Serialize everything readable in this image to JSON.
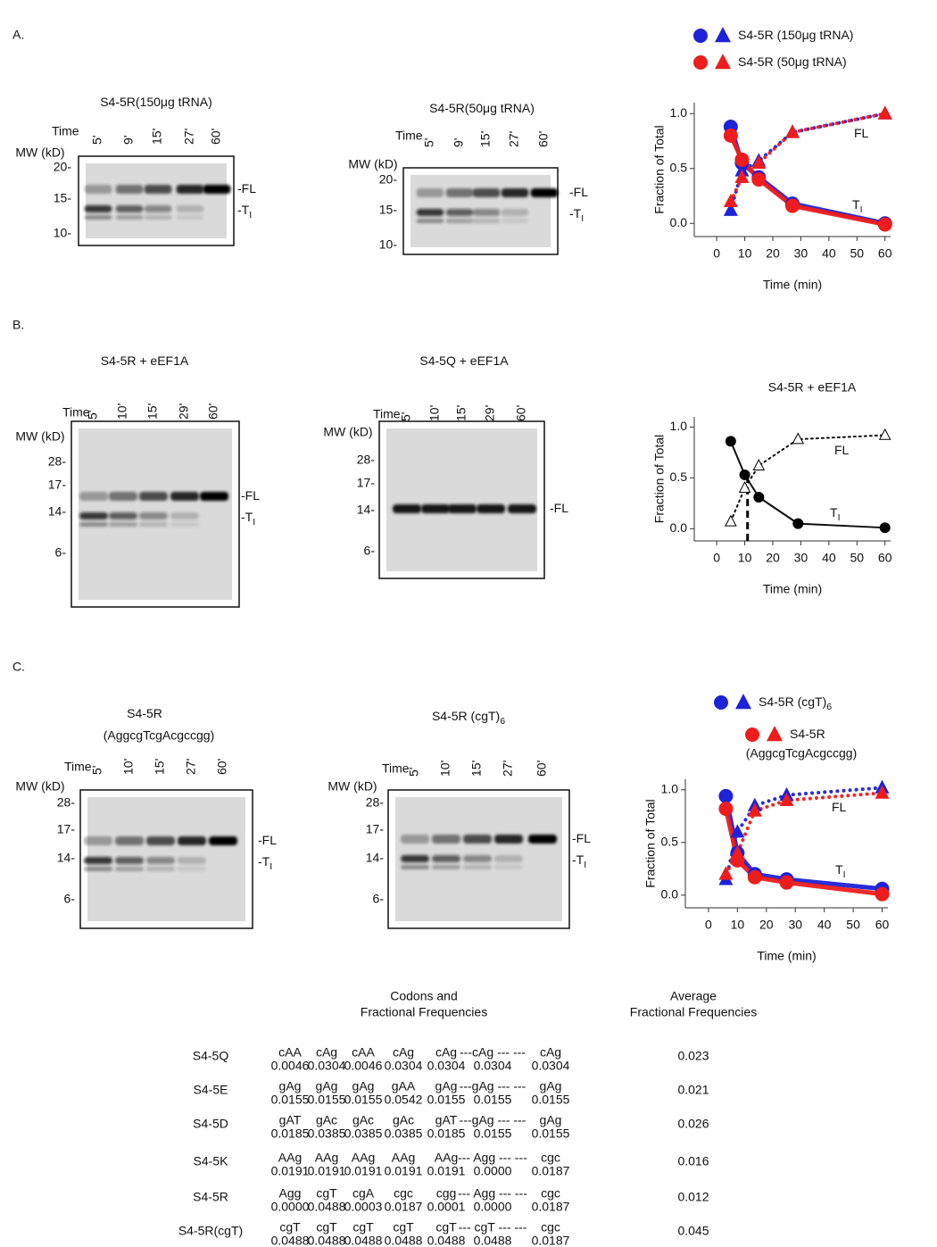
{
  "panels": [
    {
      "label": "A.",
      "gels": [
        {
          "title": "S4-5R(150μg tRNA)",
          "time_label": "Time",
          "times": [
            "5'",
            "9'",
            "15'",
            "27'",
            "60'"
          ],
          "mw_label": "MW (kD)",
          "mw_ticks": [
            "20-",
            "15-",
            "10-"
          ],
          "band_labels": [
            {
              "text": "-FL"
            },
            {
              "text": "-T",
              "sub": "I"
            }
          ]
        },
        {
          "title": "S4-5R(50μg tRNA)",
          "time_label": "Time",
          "times": [
            "5'",
            "9'",
            "15'",
            "27'",
            "60'"
          ],
          "mw_label": "MW (kD)",
          "mw_ticks": [
            "20-",
            "15-",
            "10-"
          ],
          "band_labels": [
            {
              "text": "-FL"
            },
            {
              "text": "-T",
              "sub": "I"
            }
          ]
        }
      ],
      "chart": {
        "type": "line",
        "xlabel": "Time (min)",
        "ylabel": "Fraction of Total",
        "legend": [
          {
            "label": "S4-5R (150μg tRNA)",
            "color": "#1e22d8"
          },
          {
            "label": "S4-5R (50μg tRNA)",
            "color": "#ee1c1c"
          }
        ],
        "xlim": [
          -8,
          62
        ],
        "xticks": [
          0,
          10,
          20,
          30,
          40,
          50,
          60
        ],
        "ylim": [
          -0.12,
          1.1
        ],
        "yticks": [
          {
            "value": 0,
            "label": "0.0"
          },
          {
            "value": 0.5,
            "label": "0.5"
          },
          {
            "value": 1,
            "label": "1.0"
          }
        ],
        "series": [
          {
            "color": "#1e22d8",
            "marker": "circle",
            "line": "solid",
            "x": [
              5,
              9,
              15,
              27,
              60
            ],
            "values": [
              0.88,
              0.55,
              0.42,
              0.18,
              0.0
            ]
          },
          {
            "color": "#1e22d8",
            "marker": "triangle",
            "line": "dotted",
            "x": [
              5,
              9,
              15,
              27,
              60
            ],
            "values": [
              0.12,
              0.48,
              0.57,
              0.83,
              1.0
            ]
          },
          {
            "color": "#ee1c1c",
            "marker": "circle",
            "line": "solid",
            "x": [
              5,
              9,
              15,
              27,
              60
            ],
            "values": [
              0.8,
              0.58,
              0.4,
              0.16,
              -0.01
            ]
          },
          {
            "color": "#ee1c1c",
            "marker": "triangle",
            "line": "dotted",
            "x": [
              5,
              9,
              15,
              27,
              60
            ],
            "values": [
              0.2,
              0.42,
              0.55,
              0.83,
              1.0
            ]
          }
        ],
        "annotations": [
          {
            "text": "FL"
          },
          {
            "text": "T",
            "sub": "I"
          }
        ]
      }
    },
    {
      "label": "B.",
      "gels": [
        {
          "title": "S4-5R + eEF1A",
          "time_label": "Time",
          "times": [
            "5'",
            "10'",
            "15'",
            "29'",
            "60'"
          ],
          "mw_label": "MW (kD)",
          "mw_ticks": [
            "28-",
            "17-",
            "14-",
            "6-"
          ],
          "band_labels": [
            {
              "text": "-FL"
            },
            {
              "text": "-T",
              "sub": "I"
            }
          ]
        },
        {
          "title": "S4-5Q + eEF1A",
          "time_label": "Time",
          "times": [
            "5'",
            "10'",
            "15'",
            "29'",
            "60'"
          ],
          "mw_label": "MW (kD)",
          "mw_ticks": [
            "28-",
            "17-",
            "14-",
            "6-"
          ],
          "band_labels": [
            {
              "text": "-FL"
            }
          ]
        }
      ],
      "chart": {
        "type": "line",
        "title": "S4-5R + eEF1A",
        "xlabel": "Time (min)",
        "ylabel": "Fraction of Total",
        "xlim": [
          -8,
          62
        ],
        "xticks": [
          0,
          10,
          20,
          30,
          40,
          50,
          60
        ],
        "ylim": [
          -0.12,
          1.1
        ],
        "yticks": [
          {
            "value": 0,
            "label": "0.0"
          },
          {
            "value": 0.5,
            "label": "0.5"
          },
          {
            "value": 1,
            "label": "1.0"
          }
        ],
        "half_time_x": 11,
        "series": [
          {
            "color": "#000000",
            "marker": "circle",
            "line": "solid",
            "x": [
              5,
              10,
              15,
              29,
              60
            ],
            "values": [
              0.86,
              0.53,
              0.31,
              0.05,
              0.01
            ]
          },
          {
            "color": "#000000",
            "marker": "triangle-open",
            "line": "dotted",
            "x": [
              5,
              10,
              15,
              29,
              60
            ],
            "values": [
              0.07,
              0.4,
              0.62,
              0.88,
              0.92
            ]
          }
        ],
        "annotations": [
          {
            "text": "FL"
          },
          {
            "text": "T",
            "sub": "I"
          }
        ]
      }
    },
    {
      "label": "C.",
      "gels": [
        {
          "title": "S4-5R",
          "title2": "(AggcgTcgAcgccgg)",
          "time_label": "Time",
          "times": [
            "5'",
            "10'",
            "15'",
            "27'",
            "60'"
          ],
          "mw_label": "MW (kD)",
          "mw_ticks": [
            "28-",
            "17-",
            "14-",
            "6-"
          ],
          "band_labels": [
            {
              "text": "-FL"
            },
            {
              "text": "-T",
              "sub": "I"
            }
          ]
        },
        {
          "title": "S4-5R (cgT)",
          "title_sub": "6",
          "time_label": "Time",
          "times": [
            "5'",
            "10'",
            "15'",
            "27'",
            "60'"
          ],
          "mw_label": "MW (kD)",
          "mw_ticks": [
            "28-",
            "17-",
            "14-",
            "6-"
          ],
          "band_labels": [
            {
              "text": "-FL"
            },
            {
              "text": "-T",
              "sub": "I"
            }
          ]
        }
      ],
      "chart": {
        "type": "line",
        "xlabel": "Time (min)",
        "ylabel": "Fraction of Total",
        "legend": [
          {
            "label": "S4-5R (cgT)",
            "sub": "6",
            "color": "#1e22d8"
          },
          {
            "label": "S4-5R",
            "label2": "(AggcgTcgAcgccgg)",
            "color": "#ee1c1c"
          }
        ],
        "xlim": [
          -8,
          62
        ],
        "xticks": [
          0,
          10,
          20,
          30,
          40,
          50,
          60
        ],
        "ylim": [
          -0.12,
          1.1
        ],
        "yticks": [
          {
            "value": 0,
            "label": "0.0"
          },
          {
            "value": 0.5,
            "label": "0.5"
          },
          {
            "value": 1,
            "label": "1.0"
          }
        ],
        "series": [
          {
            "color": "#1e22d8",
            "marker": "circle",
            "line": "solid",
            "x": [
              6,
              10,
              16,
              27,
              60
            ],
            "values": [
              0.94,
              0.4,
              0.2,
              0.15,
              0.06
            ]
          },
          {
            "color": "#1e22d8",
            "marker": "triangle",
            "line": "dotted",
            "x": [
              6,
              10,
              16,
              27,
              60
            ],
            "values": [
              0.15,
              0.6,
              0.85,
              0.95,
              1.02
            ]
          },
          {
            "color": "#ee1c1c",
            "marker": "circle",
            "line": "solid",
            "x": [
              6,
              10,
              16,
              27,
              60
            ],
            "values": [
              0.82,
              0.33,
              0.17,
              0.12,
              0.01
            ]
          },
          {
            "color": "#ee1c1c",
            "marker": "triangle",
            "line": "dotted",
            "x": [
              6,
              10,
              16,
              27,
              60
            ],
            "values": [
              0.2,
              0.4,
              0.8,
              0.9,
              0.97
            ]
          }
        ],
        "annotations": [
          {
            "text": "FL"
          },
          {
            "text": "T",
            "sub": "I"
          }
        ]
      }
    }
  ],
  "table": {
    "headers": [
      [
        "Codons and",
        "Fractional Frequencies"
      ],
      [
        "Average",
        "Fractional Frequencies"
      ]
    ],
    "rows": [
      {
        "name": "S4-5Q",
        "codons": [
          "cAA",
          "cAg",
          "cAA",
          "cAg",
          "cAg",
          "---cAg --- ---",
          "cAg"
        ],
        "freqs": [
          "0.0046",
          "0.0304",
          "0.0046",
          "0.0304",
          "0.0304",
          "0.0304",
          "0.0304"
        ],
        "average": "0.023"
      },
      {
        "name": "S4-5E",
        "codons": [
          "gAg",
          "gAg",
          "gAg",
          "gAA",
          "gAg",
          "---gAg --- ---",
          "gAg"
        ],
        "freqs": [
          "0.0155",
          "0.0155",
          "0.0155",
          "0.0542",
          "0.0155",
          "0.0155",
          "0.0155"
        ],
        "average": "0.021"
      },
      {
        "name": "S4-5D",
        "codons": [
          "gAT",
          "gAc",
          "gAc",
          "gAc",
          "gAT",
          "---gAg --- ---",
          "gAg"
        ],
        "freqs": [
          "0.0185",
          "0.0385",
          "0.0385",
          "0.0385",
          "0.0185",
          "0.0155",
          "0.0155"
        ],
        "average": "0.026"
      },
      {
        "name": "S4-5K",
        "codons": [
          "AAg",
          "AAg",
          "AAg",
          "AAg",
          "AAg",
          "--- Agg --- ---",
          "cgc"
        ],
        "freqs": [
          "0.0191",
          "0.0191",
          "0.0191",
          "0.0191",
          "0.0191",
          "0.0000",
          "0.0187"
        ],
        "average": "0.016"
      },
      {
        "name": "S4-5R",
        "codons": [
          "Agg",
          "cgT",
          "cgA",
          "cgc",
          "cgg",
          "--- Agg --- ---",
          "cgc"
        ],
        "freqs": [
          "0.0000",
          "0.0488",
          "0.0003",
          "0.0187",
          "0.0001",
          "0.0000",
          "0.0187"
        ],
        "average": "0.012"
      },
      {
        "name": "S4-5R(cgT)",
        "codons": [
          "cgT",
          "cgT",
          "cgT",
          "cgT",
          "cgT",
          "--- cgT --- ---",
          "cgc"
        ],
        "freqs": [
          "0.0488",
          "0.0488",
          "0.0488",
          "0.0488",
          "0.0488",
          "0.0488",
          "0.0187"
        ],
        "average": "0.045"
      }
    ]
  }
}
